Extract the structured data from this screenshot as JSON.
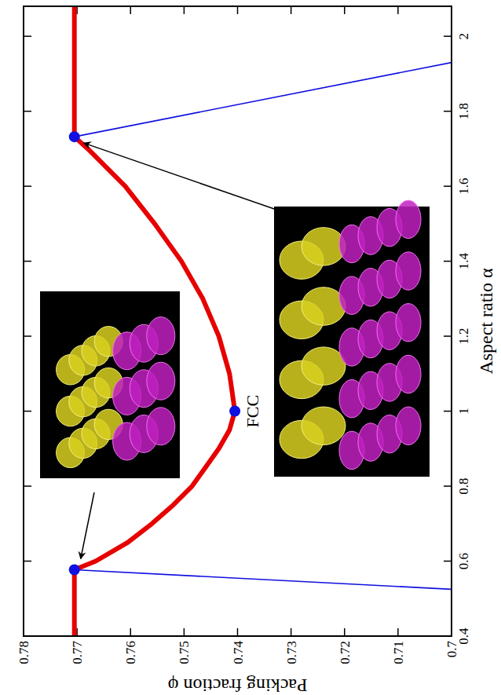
{
  "chart_data": {
    "type": "line",
    "x_label": "Aspect ratio α",
    "y_label": "Packing fraction φ",
    "xlim": [
      0.4,
      2.08
    ],
    "ylim": [
      0.7,
      0.78
    ],
    "xticks": [
      0.4,
      0.6,
      0.8,
      1,
      1.2,
      1.4,
      1.6,
      1.8,
      2
    ],
    "yticks": [
      0.7,
      0.71,
      0.72,
      0.73,
      0.74,
      0.75,
      0.76,
      0.77,
      0.78
    ],
    "series": [
      {
        "type": "line",
        "color": "#e60000",
        "line_style": "thick",
        "x": [
          0.4,
          0.577,
          0.6,
          0.65,
          0.7,
          0.75,
          0.8,
          0.85,
          0.9,
          0.95,
          1.0,
          1.05,
          1.1,
          1.2,
          1.3,
          1.4,
          1.5,
          1.6,
          1.7,
          1.732,
          2.08
        ],
        "values": [
          0.7705,
          0.7705,
          0.7665,
          0.7605,
          0.756,
          0.752,
          0.7485,
          0.746,
          0.7435,
          0.7415,
          0.7405,
          0.741,
          0.7415,
          0.7435,
          0.7465,
          0.7505,
          0.7555,
          0.761,
          0.768,
          0.7705,
          0.7705
        ]
      },
      {
        "type": "line",
        "color": "#1010e0",
        "line_style": "solid",
        "x": [
          0.577,
          0.525
        ],
        "values": [
          0.7705,
          0.7
        ]
      },
      {
        "type": "line",
        "color": "#1010e0",
        "line_style": "solid",
        "x": [
          1.732,
          1.93
        ],
        "values": [
          0.7705,
          0.7
        ]
      },
      {
        "type": "scatter",
        "color": "#1010e0",
        "marker": "circle",
        "x": [
          0.577,
          1.0,
          1.732
        ],
        "values": [
          0.7705,
          0.7405,
          0.7705
        ]
      }
    ],
    "annotations": [
      {
        "text": "FCC",
        "x": 1.0,
        "y": 0.7405
      }
    ]
  }
}
